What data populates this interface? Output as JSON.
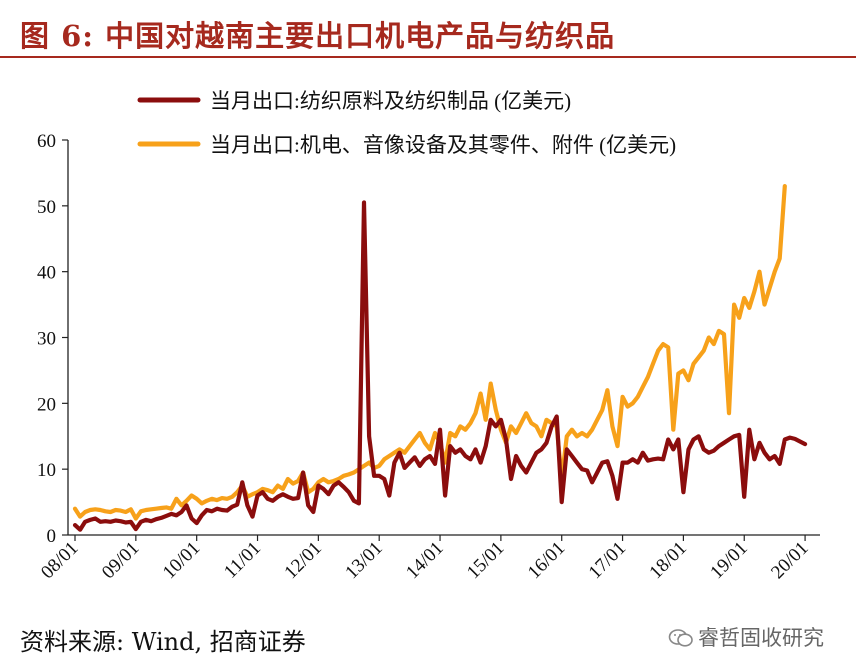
{
  "header": {
    "title": "图 6:  中国对越南主要出口机电产品与纺织品"
  },
  "footer": {
    "source": "资料来源:  Wind,  招商证券",
    "watermark": "睿哲固收研究"
  },
  "colors": {
    "accent": "#a6291e",
    "series1": "#8b0d0d",
    "series2": "#f7a11a"
  },
  "chart_data": {
    "type": "line",
    "title": "",
    "xlabel": "",
    "ylabel": "",
    "ylim": [
      0,
      60
    ],
    "yticks": [
      "0",
      "10",
      "20",
      "30",
      "40",
      "50",
      "60"
    ],
    "xticks": [
      "08/01",
      "09/01",
      "10/01",
      "11/01",
      "12/01",
      "13/01",
      "14/01",
      "15/01",
      "16/01",
      "17/01",
      "18/01",
      "19/01",
      "20/01"
    ],
    "grid": false,
    "legend_placement": "top",
    "series": [
      {
        "name": "当月出口:纺织原料及纺织制品 (亿美元)",
        "color": "#8b0d0d",
        "values": [
          1.5,
          0.8,
          2.0,
          2.3,
          2.5,
          2.0,
          2.1,
          2.0,
          2.2,
          2.1,
          1.9,
          2.0,
          0.9,
          2.0,
          2.3,
          2.1,
          2.4,
          2.6,
          2.9,
          3.2,
          3.0,
          3.5,
          4.5,
          2.5,
          1.8,
          3.0,
          3.8,
          3.6,
          4.0,
          3.8,
          3.7,
          4.3,
          4.6,
          8.0,
          4.5,
          2.8,
          6.0,
          6.5,
          5.5,
          5.2,
          5.8,
          6.2,
          5.8,
          5.5,
          5.6,
          9.5,
          4.5,
          3.5,
          7.5,
          7.0,
          6.2,
          7.5,
          8.0,
          7.3,
          6.5,
          5.2,
          4.8,
          50.5,
          15.0,
          9.0,
          9.0,
          8.5,
          6.0,
          11.0,
          12.5,
          10.2,
          11.0,
          11.8,
          10.5,
          11.5,
          12.0,
          10.8,
          16.0,
          6.0,
          13.5,
          12.5,
          13.0,
          12.0,
          11.5,
          13.0,
          11.0,
          13.5,
          17.5,
          16.5,
          17.5,
          14.5,
          8.5,
          12.0,
          10.5,
          9.5,
          11.0,
          12.5,
          13.0,
          14.0,
          16.5,
          18.0,
          5.0,
          13.0,
          12.0,
          11.0,
          10.0,
          9.8,
          8.0,
          9.5,
          11.0,
          11.2,
          9.0,
          5.5,
          11.0,
          11.0,
          11.5,
          11.0,
          12.5,
          11.3,
          11.5,
          11.6,
          11.5,
          14.5,
          13.0,
          14.5,
          6.5,
          13.0,
          14.5,
          15.0,
          13.0,
          12.5,
          12.8,
          13.5,
          14.0,
          14.5,
          15.0,
          15.2,
          5.8,
          16.0,
          11.5,
          14.0,
          12.5,
          11.5,
          12.0,
          10.8,
          14.5,
          14.8,
          14.6,
          14.2,
          13.8
        ]
      },
      {
        "name": "当月出口:机电、音像设备及其零件、附件 (亿美元)",
        "color": "#f7a11a",
        "values": [
          4.0,
          2.8,
          3.5,
          3.8,
          3.9,
          3.8,
          3.6,
          3.5,
          3.8,
          3.7,
          3.5,
          3.9,
          2.5,
          3.6,
          3.8,
          3.9,
          4.0,
          4.1,
          4.2,
          4.0,
          5.5,
          4.5,
          5.2,
          6.0,
          5.5,
          4.8,
          5.2,
          5.5,
          5.3,
          5.6,
          5.5,
          5.8,
          6.5,
          7.5,
          5.8,
          6.2,
          6.5,
          7.0,
          6.8,
          6.5,
          7.5,
          7.0,
          8.5,
          7.8,
          8.2,
          9.5,
          6.5,
          7.0,
          8.0,
          8.5,
          8.0,
          8.2,
          8.5,
          9.0,
          9.2,
          9.5,
          10.0,
          10.5,
          11.0,
          10.2,
          10.5,
          11.5,
          12.0,
          12.5,
          13.0,
          12.5,
          13.5,
          14.5,
          15.5,
          14.0,
          13.0,
          15.5,
          14.0,
          11.0,
          15.5,
          15.0,
          16.5,
          16.0,
          17.0,
          18.5,
          21.5,
          17.5,
          23.0,
          19.0,
          16.0,
          14.0,
          16.5,
          15.5,
          17.0,
          18.5,
          17.0,
          16.5,
          15.0,
          17.5,
          17.0,
          16.5,
          8.5,
          15.0,
          16.0,
          15.0,
          15.5,
          15.0,
          16.0,
          17.5,
          19.0,
          22.0,
          16.5,
          13.5,
          21.0,
          19.5,
          20.0,
          21.0,
          22.5,
          24.0,
          26.0,
          28.0,
          29.0,
          28.5,
          16.0,
          24.5,
          25.0,
          23.5,
          26.0,
          27.0,
          28.0,
          30.0,
          29.0,
          31.0,
          30.5,
          18.5,
          35.0,
          33.0,
          36.0,
          34.5,
          37.0,
          40.0,
          35.0,
          37.5,
          40.0,
          42.0,
          53.0
        ]
      }
    ]
  }
}
